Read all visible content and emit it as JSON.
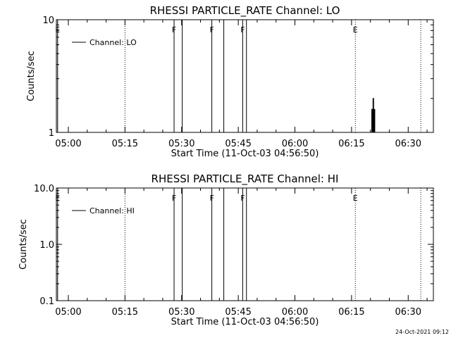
{
  "footer": "24-Oct-2021 09:12",
  "chart_data": [
    {
      "type": "line",
      "title": "RHESSI PARTICLE_RATE Channel: LO",
      "xlabel": "Start Time (11-Oct-03 04:56:50)",
      "ylabel": "Counts/sec",
      "yscale": "log",
      "ylim": [
        1,
        10
      ],
      "yticks": [
        {
          "value": 1,
          "label": "1"
        },
        {
          "value": 10,
          "label": "10"
        }
      ],
      "xlim": [
        "04:56:50",
        "06:36:40"
      ],
      "xticks": [
        "05:00",
        "05:15",
        "05:30",
        "05:45",
        "06:00",
        "06:15",
        "06:30"
      ],
      "legend": {
        "placement": "top-left",
        "entries": [
          "Channel: LO"
        ]
      },
      "series": [
        {
          "name": "Channel: LO",
          "points": [
            {
              "t": "06:20:10",
              "y": 1
            },
            {
              "t": "06:20:20",
              "y": 1.6
            },
            {
              "t": "06:20:30",
              "y": 1
            },
            {
              "t": "06:20:40",
              "y": 2
            },
            {
              "t": "06:20:50",
              "y": 1
            },
            {
              "t": "06:21:00",
              "y": 1.6
            },
            {
              "t": "06:21:10",
              "y": 1
            }
          ]
        }
      ],
      "flag_lines": [
        {
          "t": "04:57:10",
          "style": "solid",
          "label": "E"
        },
        {
          "t": "05:15:00",
          "style": "dotted",
          "label": ""
        },
        {
          "t": "05:28:00",
          "style": "solid",
          "label": "F"
        },
        {
          "t": "05:30:10",
          "style": "solid",
          "label": ""
        },
        {
          "t": "05:38:00",
          "style": "solid",
          "label": "F"
        },
        {
          "t": "05:41:10",
          "style": "solid",
          "label": ""
        },
        {
          "t": "05:46:10",
          "style": "solid",
          "label": "F"
        },
        {
          "t": "05:47:10",
          "style": "solid",
          "label": ""
        },
        {
          "t": "06:16:00",
          "style": "dotted",
          "label": "E"
        },
        {
          "t": "06:33:20",
          "style": "dotted",
          "label": ""
        }
      ]
    },
    {
      "type": "line",
      "title": "RHESSI PARTICLE_RATE Channel: HI",
      "xlabel": "Start Time (11-Oct-03 04:56:50)",
      "ylabel": "Counts/sec",
      "yscale": "log",
      "ylim": [
        0.1,
        10
      ],
      "yticks": [
        {
          "value": 0.1,
          "label": "0.1"
        },
        {
          "value": 1,
          "label": "1.0"
        },
        {
          "value": 10,
          "label": "10.0"
        }
      ],
      "xlim": [
        "04:56:50",
        "06:36:40"
      ],
      "xticks": [
        "05:00",
        "05:15",
        "05:30",
        "05:45",
        "06:00",
        "06:15",
        "06:30"
      ],
      "legend": {
        "placement": "top-left",
        "entries": [
          "Channel: HI"
        ]
      },
      "series": [
        {
          "name": "Channel: HI",
          "points": []
        }
      ],
      "flag_lines": [
        {
          "t": "04:57:10",
          "style": "solid",
          "label": "E"
        },
        {
          "t": "05:15:00",
          "style": "dotted",
          "label": ""
        },
        {
          "t": "05:28:00",
          "style": "solid",
          "label": "F"
        },
        {
          "t": "05:30:10",
          "style": "solid",
          "label": ""
        },
        {
          "t": "05:38:00",
          "style": "solid",
          "label": "F"
        },
        {
          "t": "05:41:10",
          "style": "solid",
          "label": ""
        },
        {
          "t": "05:46:10",
          "style": "solid",
          "label": "F"
        },
        {
          "t": "05:47:10",
          "style": "solid",
          "label": ""
        },
        {
          "t": "06:16:00",
          "style": "dotted",
          "label": "E"
        },
        {
          "t": "06:33:20",
          "style": "dotted",
          "label": ""
        }
      ]
    }
  ]
}
